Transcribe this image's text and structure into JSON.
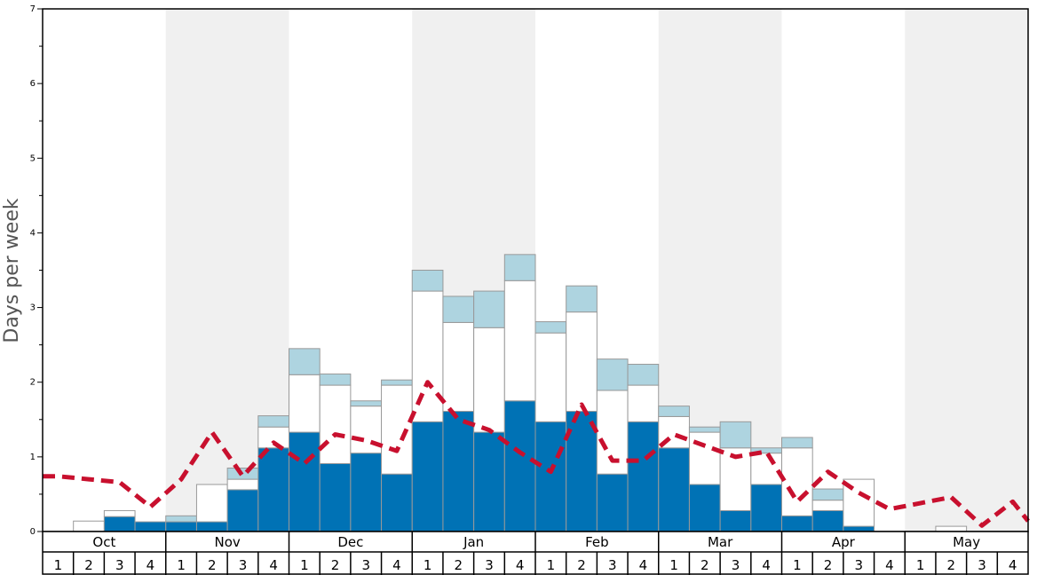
{
  "chart_data": {
    "type": "bar",
    "ylabel": "Days per week",
    "xlabel": "",
    "ylim": [
      0,
      7
    ],
    "yticks": [
      0,
      1,
      2,
      3,
      4,
      5,
      6,
      7
    ],
    "months": [
      "Oct",
      "Nov",
      "Dec",
      "Jan",
      "Feb",
      "Mar",
      "Apr",
      "May"
    ],
    "week_labels": [
      "1",
      "2",
      "3",
      "4"
    ],
    "stacked": true,
    "series": [
      {
        "color": "#0072b5",
        "values": [
          0,
          0,
          0.2,
          0.13,
          0.13,
          0.13,
          0.56,
          1.12,
          1.33,
          0.91,
          1.05,
          0.77,
          1.47,
          1.61,
          1.33,
          1.75,
          1.47,
          1.61,
          0.77,
          1.47,
          1.12,
          0.63,
          0.28,
          0.63,
          0.21,
          0.28,
          0.07,
          0,
          0,
          0,
          0,
          0
        ]
      },
      {
        "color": "#ffffff",
        "values": [
          0,
          0.14,
          0.08,
          0,
          0,
          0.5,
          0.14,
          0.28,
          0.77,
          1.05,
          0.63,
          1.19,
          1.75,
          1.19,
          1.4,
          1.61,
          1.19,
          1.33,
          1.12,
          0.49,
          0.42,
          0.7,
          0.84,
          0.42,
          0.91,
          0.14,
          0.63,
          0,
          0,
          0.07,
          0,
          0
        ]
      },
      {
        "color": "#aed4e0",
        "values": [
          0,
          0,
          0,
          0,
          0.08,
          0,
          0.15,
          0.15,
          0.35,
          0.15,
          0.07,
          0.07,
          0.28,
          0.35,
          0.49,
          0.35,
          0.15,
          0.35,
          0.42,
          0.28,
          0.14,
          0.07,
          0.35,
          0.07,
          0.14,
          0.15,
          0,
          0,
          0,
          0,
          0,
          0
        ]
      },
      {
        "type": "line",
        "color": "#c8102e",
        "values": [
          0.74,
          0.7,
          0.66,
          0.33,
          0.7,
          1.33,
          0.74,
          1.19,
          0.91,
          1.3,
          1.22,
          1.08,
          2.0,
          1.5,
          1.36,
          1.06,
          0.8,
          1.7,
          0.95,
          0.95,
          1.3,
          1.15,
          1.0,
          1.07,
          0.4,
          0.8,
          0.52,
          0.3,
          0.38,
          0.46,
          0.08,
          0.4
        ]
      }
    ],
    "line_extends_to_edges": [
      0.74,
      0.14
    ],
    "shaded_months": [
      "Nov",
      "Jan",
      "Mar",
      "May"
    ]
  }
}
